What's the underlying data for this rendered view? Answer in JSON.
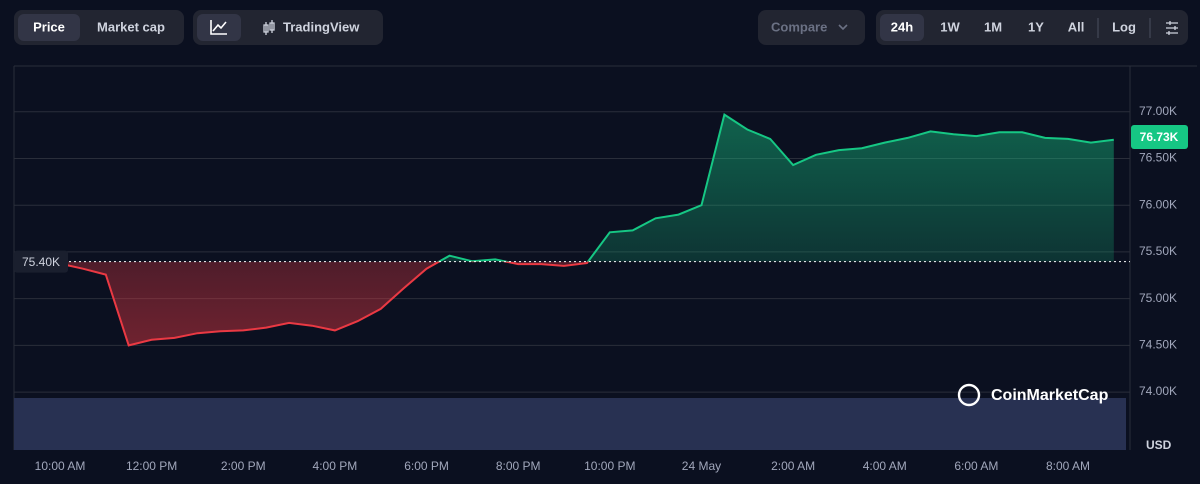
{
  "toolbar": {
    "price": "Price",
    "market_cap": "Market cap",
    "tradingview": "TradingView",
    "compare": "Compare",
    "ranges": [
      "24h",
      "1W",
      "1M",
      "1Y",
      "All"
    ],
    "log": "Log"
  },
  "chart_data": {
    "type": "area",
    "categories": [
      "10:00 AM",
      null,
      null,
      null,
      "12:00 PM",
      null,
      null,
      null,
      "2:00 PM",
      null,
      null,
      null,
      "4:00 PM",
      null,
      null,
      null,
      "6:00 PM",
      null,
      null,
      null,
      "8:00 PM",
      null,
      null,
      null,
      "10:00 PM",
      null,
      null,
      null,
      "24 May",
      null,
      null,
      null,
      "2:00 AM",
      null,
      null,
      null,
      "4:00 AM",
      null,
      null,
      null,
      "6:00 AM",
      null,
      null,
      null,
      "8:00 AM",
      null,
      null
    ],
    "values": [
      75375,
      75321,
      75257,
      74500,
      74560,
      74580,
      74630,
      74650,
      74660,
      74690,
      74740,
      74710,
      74660,
      74760,
      74890,
      75110,
      75320,
      75460,
      75400,
      75420,
      75370,
      75370,
      75350,
      75380,
      75710,
      75730,
      75860,
      75900,
      76000,
      76970,
      76810,
      76710,
      76430,
      76540,
      76590,
      76610,
      76670,
      76720,
      76790,
      76760,
      76740,
      76780,
      76780,
      76720,
      76710,
      76670,
      76700
    ],
    "colors": {
      "up": "#16c784",
      "down": "#ea3943"
    },
    "baseline": {
      "value": 75396,
      "label": "75.40K"
    },
    "last_price": {
      "value": 76730,
      "label": "76.73K"
    },
    "ylim": [
      73380,
      77490
    ],
    "yticks": [
      {
        "value": 74000,
        "label": "74.00K"
      },
      {
        "value": 74500,
        "label": "74.50K"
      },
      {
        "value": 75000,
        "label": "75.00K"
      },
      {
        "value": 75500,
        "label": "75.50K"
      },
      {
        "value": 76000,
        "label": "76.00K"
      },
      {
        "value": 76500,
        "label": "76.50K"
      },
      {
        "value": 77000,
        "label": "77.00K"
      }
    ],
    "y_unit": "USD",
    "grid": true,
    "watermark": "CoinMarketCap"
  }
}
